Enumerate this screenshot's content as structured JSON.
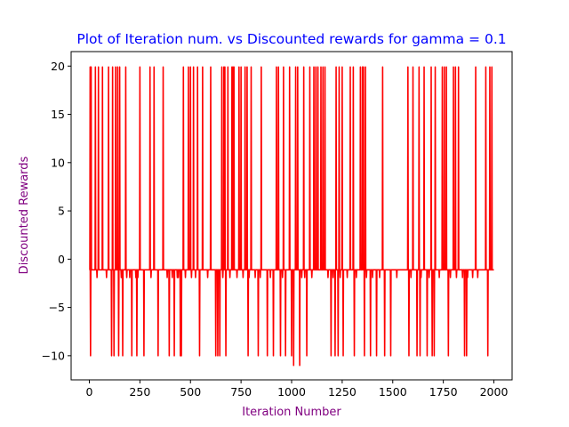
{
  "chart_data": {
    "type": "line",
    "title": "Plot of Iteration num. vs Discounted rewards for gamma = 0.1",
    "xlabel": "Iteration Number",
    "ylabel": "Discounted Rewards",
    "xlim": [
      -90,
      2090
    ],
    "ylim": [
      -12.5,
      21.5
    ],
    "xticks": [
      0,
      250,
      500,
      750,
      1000,
      1250,
      1500,
      1750,
      2000
    ],
    "yticks": [
      -10,
      -5,
      0,
      5,
      10,
      15,
      20
    ],
    "grid": false,
    "baseline": -1.1,
    "series": [
      {
        "color": "#ff0000",
        "events": [
          [
            4,
            19.9
          ],
          [
            6,
            -10
          ],
          [
            9,
            19.9
          ],
          [
            30,
            19.9
          ],
          [
            38,
            -1.9
          ],
          [
            45,
            19.9
          ],
          [
            65,
            19.9
          ],
          [
            85,
            -1.9
          ],
          [
            95,
            19.9
          ],
          [
            110,
            -10
          ],
          [
            115,
            19.9
          ],
          [
            122,
            -10
          ],
          [
            130,
            19.9
          ],
          [
            140,
            19.9
          ],
          [
            145,
            -10
          ],
          [
            150,
            19.9
          ],
          [
            158,
            -1.9
          ],
          [
            165,
            -10
          ],
          [
            180,
            19.9
          ],
          [
            185,
            -1.9
          ],
          [
            200,
            -1.9
          ],
          [
            210,
            -10
          ],
          [
            230,
            -1.9
          ],
          [
            235,
            -10
          ],
          [
            240,
            -1.9
          ],
          [
            250,
            19.9
          ],
          [
            270,
            -10
          ],
          [
            300,
            19.9
          ],
          [
            305,
            -1.9
          ],
          [
            320,
            19.9
          ],
          [
            340,
            -10
          ],
          [
            365,
            19.9
          ],
          [
            385,
            -1.9
          ],
          [
            395,
            -10
          ],
          [
            410,
            -1.9
          ],
          [
            420,
            -10
          ],
          [
            435,
            -1.9
          ],
          [
            440,
            -1.9
          ],
          [
            450,
            -10
          ],
          [
            455,
            -10
          ],
          [
            465,
            19.9
          ],
          [
            475,
            -1.9
          ],
          [
            490,
            19.9
          ],
          [
            500,
            19.9
          ],
          [
            505,
            -1.9
          ],
          [
            515,
            19.9
          ],
          [
            525,
            -1.9
          ],
          [
            535,
            19.9
          ],
          [
            545,
            -10
          ],
          [
            560,
            19.9
          ],
          [
            585,
            -1.9
          ],
          [
            600,
            19.9
          ],
          [
            625,
            -10
          ],
          [
            635,
            -10
          ],
          [
            645,
            -10
          ],
          [
            655,
            19.9
          ],
          [
            660,
            -1.9
          ],
          [
            665,
            19.9
          ],
          [
            670,
            19.9
          ],
          [
            675,
            -10
          ],
          [
            685,
            19.9
          ],
          [
            695,
            -1.9
          ],
          [
            705,
            19.9
          ],
          [
            710,
            19.9
          ],
          [
            715,
            19.9
          ],
          [
            730,
            -1.9
          ],
          [
            740,
            19.9
          ],
          [
            750,
            19.9
          ],
          [
            760,
            -1.9
          ],
          [
            770,
            19.9
          ],
          [
            780,
            19.9
          ],
          [
            785,
            -10
          ],
          [
            790,
            -1.9
          ],
          [
            800,
            19.9
          ],
          [
            820,
            -1.9
          ],
          [
            835,
            -10
          ],
          [
            845,
            -1.9
          ],
          [
            850,
            19.9
          ],
          [
            880,
            -10
          ],
          [
            895,
            -1.9
          ],
          [
            910,
            -10
          ],
          [
            925,
            19.9
          ],
          [
            935,
            19.9
          ],
          [
            945,
            -10
          ],
          [
            955,
            -1.9
          ],
          [
            960,
            19.9
          ],
          [
            970,
            -10
          ],
          [
            990,
            19.9
          ],
          [
            1000,
            -10
          ],
          [
            1010,
            -11
          ],
          [
            1020,
            19.9
          ],
          [
            1030,
            19.9
          ],
          [
            1040,
            -11
          ],
          [
            1050,
            -1.9
          ],
          [
            1060,
            19.9
          ],
          [
            1065,
            -1.9
          ],
          [
            1075,
            -10
          ],
          [
            1090,
            19.9
          ],
          [
            1100,
            -1.9
          ],
          [
            1110,
            19.9
          ],
          [
            1120,
            19.9
          ],
          [
            1130,
            19.9
          ],
          [
            1145,
            19.9
          ],
          [
            1155,
            19.9
          ],
          [
            1165,
            19.9
          ],
          [
            1180,
            -1.9
          ],
          [
            1195,
            -10
          ],
          [
            1205,
            -1.9
          ],
          [
            1215,
            -10
          ],
          [
            1220,
            19.9
          ],
          [
            1230,
            -10
          ],
          [
            1235,
            19.9
          ],
          [
            1240,
            -1.9
          ],
          [
            1250,
            19.9
          ],
          [
            1255,
            -10
          ],
          [
            1275,
            -1.9
          ],
          [
            1290,
            19.9
          ],
          [
            1305,
            19.9
          ],
          [
            1310,
            -10
          ],
          [
            1320,
            -1.9
          ],
          [
            1340,
            19.9
          ],
          [
            1350,
            19.9
          ],
          [
            1355,
            19.9
          ],
          [
            1360,
            -10
          ],
          [
            1365,
            19.9
          ],
          [
            1370,
            -1.9
          ],
          [
            1390,
            -10
          ],
          [
            1400,
            -1.9
          ],
          [
            1420,
            -10
          ],
          [
            1435,
            -1.9
          ],
          [
            1450,
            19.9
          ],
          [
            1460,
            -10
          ],
          [
            1490,
            -10
          ],
          [
            1520,
            -1.9
          ],
          [
            1575,
            19.9
          ],
          [
            1580,
            -10
          ],
          [
            1590,
            -1.9
          ],
          [
            1600,
            19.9
          ],
          [
            1620,
            -10
          ],
          [
            1630,
            19.9
          ],
          [
            1635,
            -10
          ],
          [
            1640,
            -1.9
          ],
          [
            1655,
            19.9
          ],
          [
            1670,
            -10
          ],
          [
            1680,
            -1.9
          ],
          [
            1690,
            19.9
          ],
          [
            1695,
            -10
          ],
          [
            1705,
            -10
          ],
          [
            1710,
            19.9
          ],
          [
            1730,
            -1.9
          ],
          [
            1745,
            19.9
          ],
          [
            1755,
            19.9
          ],
          [
            1765,
            19.9
          ],
          [
            1775,
            -10
          ],
          [
            1785,
            -1.9
          ],
          [
            1800,
            19.9
          ],
          [
            1810,
            19.9
          ],
          [
            1815,
            -1.9
          ],
          [
            1825,
            19.9
          ],
          [
            1845,
            -1.9
          ],
          [
            1855,
            -10
          ],
          [
            1865,
            -10
          ],
          [
            1870,
            -1.9
          ],
          [
            1895,
            -1.9
          ],
          [
            1910,
            19.9
          ],
          [
            1920,
            -1.9
          ],
          [
            1960,
            19.9
          ],
          [
            1970,
            -10
          ],
          [
            1980,
            19.9
          ],
          [
            1990,
            19.9
          ]
        ],
        "x_start": 0,
        "x_end": 2000
      }
    ]
  }
}
